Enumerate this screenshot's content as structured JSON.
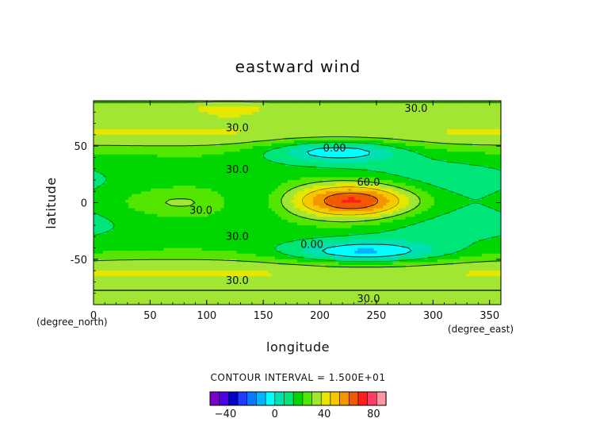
{
  "chart_data": {
    "type": "contour",
    "title": "eastward wind",
    "xlabel": "longitude",
    "ylabel": "latitude",
    "x_unit": "(degree_east)",
    "y_unit": "(degree_north)",
    "xlim": [
      0,
      360
    ],
    "ylim": [
      -90,
      90
    ],
    "x_ticks": [
      0,
      50,
      100,
      150,
      200,
      250,
      300,
      350
    ],
    "y_ticks": [
      -50,
      0,
      50
    ],
    "contour_interval_text": "CONTOUR INTERVAL = 1.500E+01",
    "contour_interval": 15,
    "contour_labels": [
      {
        "text": "30.0",
        "lon": 285,
        "lat": 83
      },
      {
        "text": "30.0",
        "lon": 127,
        "lat": 66
      },
      {
        "text": "0.00",
        "lon": 213,
        "lat": 48
      },
      {
        "text": "30.0",
        "lon": 127,
        "lat": 29
      },
      {
        "text": "60.0",
        "lon": 243,
        "lat": 18
      },
      {
        "text": "30.0",
        "lon": 95,
        "lat": -7
      },
      {
        "text": "30.0",
        "lon": 127,
        "lat": -30
      },
      {
        "text": "0.00",
        "lon": 193,
        "lat": -37
      },
      {
        "text": "30.0",
        "lon": 127,
        "lat": -69
      },
      {
        "text": "30.0",
        "lon": 243,
        "lat": -85
      }
    ],
    "colorbar": {
      "levels_min": -52.5,
      "level_step": 7.5,
      "colors": [
        "#7a00c8",
        "#5000e0",
        "#0000c8",
        "#1e3cff",
        "#0a78ff",
        "#00b4ff",
        "#00ffff",
        "#00e0b0",
        "#00e678",
        "#00d700",
        "#52e600",
        "#a0e632",
        "#e6e600",
        "#f5c800",
        "#f59600",
        "#f05a00",
        "#ff1e1e",
        "#ff3c64",
        "#ff96a0"
      ],
      "tick_values": [
        -40,
        0,
        40,
        80
      ],
      "tick_labels": [
        "−40",
        "0",
        "40",
        "80"
      ]
    }
  }
}
